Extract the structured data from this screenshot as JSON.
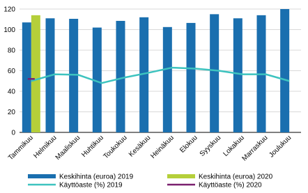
{
  "chart_data": {
    "type": "bar",
    "categories": [
      "Tammikuu",
      "Helmikuu",
      "Maaliskuu",
      "Huhtikuu",
      "Toukokuu",
      "Kesäkuu",
      "Heinäkuu",
      "Elokuu",
      "Syyskuu",
      "Lokakuu",
      "Marraskuu",
      "Joulukuu"
    ],
    "series": [
      {
        "name": "Keskihinta (euroa) 2019",
        "type": "bar",
        "color": "#1a6faf",
        "values": [
          107,
          111,
          110.5,
          102,
          108.5,
          112,
          102.5,
          106.5,
          115,
          111,
          114,
          120
        ]
      },
      {
        "name": "Keskihinta (euroa) 2020",
        "type": "bar",
        "color": "#b5cf3a",
        "values": [
          114,
          null,
          null,
          null,
          null,
          null,
          null,
          null,
          null,
          null,
          null,
          null
        ]
      },
      {
        "name": "Käyttöaste (%) 2019",
        "type": "line",
        "color": "#3dc3bf",
        "values": [
          50,
          56.5,
          56,
          48,
          53.5,
          58,
          63,
          62,
          60,
          56.5,
          56.5,
          50
        ]
      },
      {
        "name": "Käyttöaste (%) 2020",
        "type": "line",
        "color": "#7a1f6e",
        "values": [
          52,
          null,
          null,
          null,
          null,
          null,
          null,
          null,
          null,
          null,
          null,
          null
        ]
      }
    ],
    "ylim": [
      0,
      120
    ],
    "yticks": [
      0,
      20,
      40,
      60,
      80,
      100,
      120
    ],
    "grid": true
  }
}
